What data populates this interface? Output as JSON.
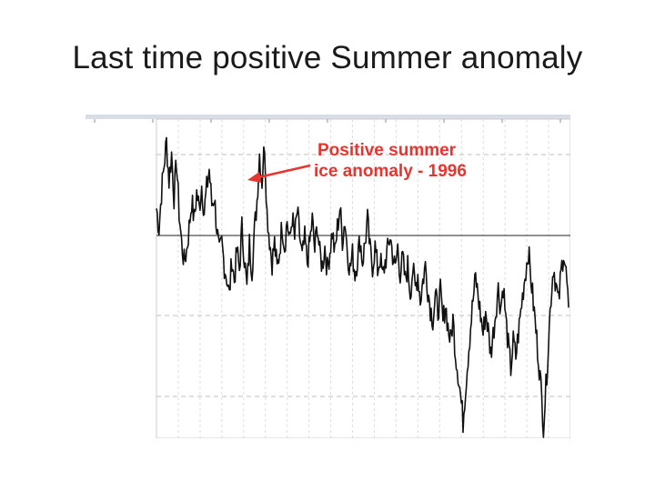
{
  "slide": {
    "title": "Last time positive Summer anomaly"
  },
  "chart_data": {
    "type": "line",
    "title": "",
    "xlabel": "",
    "ylabel": "",
    "grid": true,
    "series": [
      {
        "color": "#111111",
        "values": [
          0.35,
          0.1,
          0.55,
          0.9,
          1.2,
          0.7,
          1.05,
          0.5,
          0.95,
          0.3,
          -0.1,
          -0.35,
          -0.2,
          0.1,
          0.45,
          0.2,
          0.55,
          0.35,
          0.65,
          0.3,
          0.6,
          0.85,
          0.4,
          0.5,
          0.1,
          -0.25,
          -0.1,
          -0.4,
          -0.55,
          -0.8,
          -0.3,
          -0.6,
          -0.2,
          -0.45,
          0.1,
          -0.3,
          -0.7,
          -0.1,
          -0.45,
          0.05,
          0.45,
          1.05,
          0.7,
          1.2,
          0.3,
          -0.05,
          -0.35,
          -0.1,
          -0.45,
          -0.2,
          0.15,
          -0.15,
          0.2,
          -0.1,
          0.25,
          -0.05,
          0.3,
          0.0,
          -0.3,
          -0.05,
          -0.35,
          -0.1,
          0.2,
          -0.2,
          0.15,
          -0.25,
          -0.4,
          -0.15,
          -0.45,
          -0.2,
          0.05,
          -0.25,
          0.1,
          0.35,
          -0.05,
          0.2,
          -0.2,
          -0.45,
          -0.25,
          -0.5,
          -0.3,
          -0.05,
          -0.35,
          -0.1,
          0.2,
          -0.2,
          -0.4,
          -0.15,
          -0.45,
          -0.3,
          -0.55,
          -0.35,
          -0.2,
          0.0,
          -0.25,
          -0.45,
          -0.15,
          -0.5,
          -0.3,
          -0.6,
          -0.4,
          -0.75,
          -0.45,
          -0.7,
          -0.5,
          -0.85,
          -0.6,
          -0.4,
          -0.7,
          -0.95,
          -1.1,
          -0.8,
          -1.0,
          -0.75,
          -1.15,
          -0.9,
          -1.2,
          -1.4,
          -1.1,
          -1.55,
          -1.8,
          -2.1,
          -2.45,
          -2.0,
          -1.6,
          -1.2,
          -0.85,
          -0.55,
          -0.8,
          -1.05,
          -1.3,
          -1.0,
          -1.25,
          -1.55,
          -1.3,
          -1.0,
          -0.7,
          -0.95,
          -0.65,
          -1.1,
          -1.45,
          -1.75,
          -1.4,
          -1.6,
          -1.3,
          -1.0,
          -0.7,
          -0.45,
          -0.2,
          -0.55,
          -0.9,
          -1.25,
          -1.6,
          -2.0,
          -2.5,
          -2.0,
          -1.4,
          -0.8,
          -0.4,
          -0.65,
          -0.9,
          -0.5,
          -0.2,
          -0.5,
          -0.95
        ]
      }
    ],
    "annotations": [
      {
        "lines": [
          "Positive summer",
          "ice anomaly - 1996"
        ],
        "color": "#e8342f"
      }
    ]
  }
}
